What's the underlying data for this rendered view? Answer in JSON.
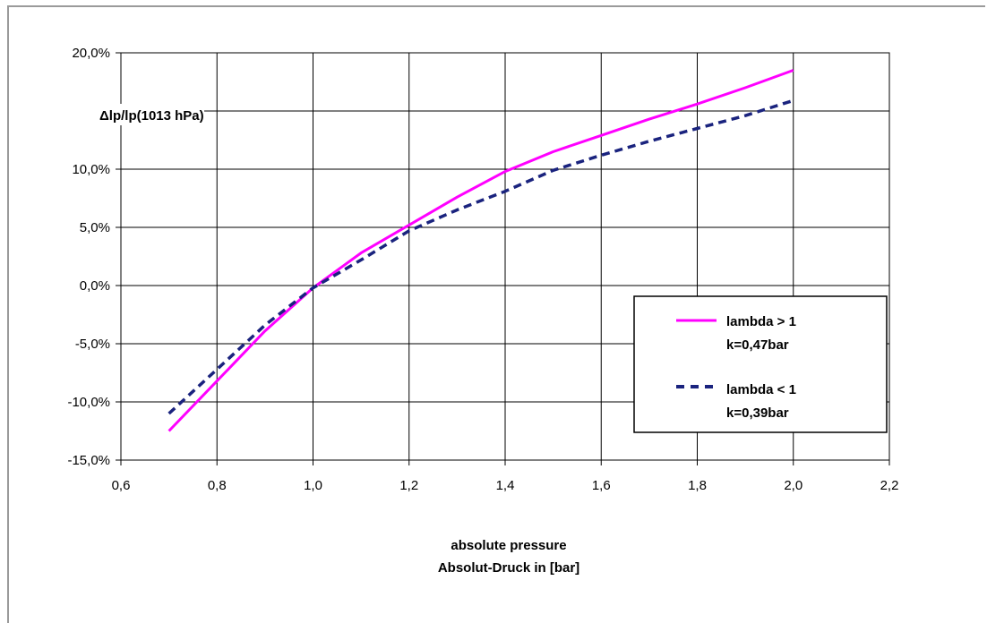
{
  "chart_data": {
    "type": "line",
    "ylabel": "Δlp/lp(1013 hPa)",
    "xlabel_lines": [
      "absolute pressure",
      "Absolut-Druck in [bar]"
    ],
    "xlim": [
      0.6,
      2.2
    ],
    "ylim": [
      -15.0,
      20.0
    ],
    "x_ticks": [
      0.6,
      0.8,
      1.0,
      1.2,
      1.4,
      1.6,
      1.8,
      2.0,
      2.2
    ],
    "x_tick_labels": [
      "0,6",
      "0,8",
      "1,0",
      "1,2",
      "1,4",
      "1,6",
      "1,8",
      "2,0",
      "2,2"
    ],
    "y_ticks": [
      20,
      10,
      5,
      0,
      -5,
      -10,
      -15
    ],
    "y_tick_labels": [
      "20,0%",
      "10,0%",
      "5,0%",
      "0,0%",
      "-5,0%",
      "-10,0%",
      "-15,0%"
    ],
    "y_grid_values": [
      20,
      15,
      10,
      5,
      0,
      -5,
      -10,
      -15
    ],
    "grid": true,
    "legend_position": "bottom-right",
    "series": [
      {
        "label_lines": [
          "lambda > 1",
          "k=0,47bar"
        ],
        "color": "#ff00ff",
        "style": "solid",
        "x": [
          0.7,
          0.8,
          0.9,
          1.0,
          1.1,
          1.2,
          1.3,
          1.4,
          1.5,
          1.6,
          1.7,
          1.8,
          1.9,
          2.0
        ],
        "y": [
          -12.5,
          -8.2,
          -3.9,
          -0.2,
          2.8,
          5.2,
          7.6,
          9.8,
          11.5,
          12.9,
          14.3,
          15.6,
          17.0,
          18.5
        ]
      },
      {
        "label_lines": [
          "lambda < 1",
          "k=0,39bar"
        ],
        "color": "#1a237e",
        "style": "dashed",
        "x": [
          0.7,
          0.8,
          0.9,
          1.0,
          1.1,
          1.2,
          1.3,
          1.4,
          1.5,
          1.6,
          1.7,
          1.8,
          1.9,
          2.0
        ],
        "y": [
          -11.0,
          -7.2,
          -3.4,
          -0.2,
          2.2,
          4.7,
          6.5,
          8.1,
          9.9,
          11.2,
          12.4,
          13.5,
          14.6,
          15.9
        ]
      }
    ]
  }
}
